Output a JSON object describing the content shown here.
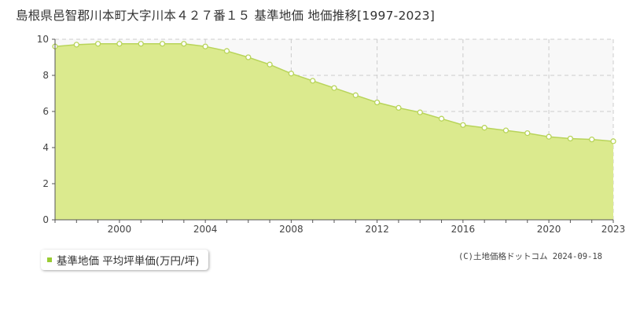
{
  "header": {
    "title": "島根県邑智郡川本町大字川本４２７番１５ 基準地価 地価推移[1997-2023]"
  },
  "legend": {
    "label": "基準地価 平均坪単価(万円/坪)"
  },
  "credit": {
    "text": "(C)土地価格ドットコム 2024-09-18"
  },
  "colors": {
    "fill": "#dbea8e",
    "line": "#b8d45a",
    "marker": "#99cc33",
    "grid": "#cccccc",
    "plot_bg": "#f8f8f8"
  },
  "chart_data": {
    "type": "area",
    "title": "島根県邑智郡川本町大字川本４２７番１５ 基準地価 地価推移[1997-2023]",
    "xlabel": "",
    "ylabel": "",
    "x": [
      1997,
      1998,
      1999,
      2000,
      2001,
      2002,
      2003,
      2004,
      2005,
      2006,
      2007,
      2008,
      2009,
      2010,
      2011,
      2012,
      2013,
      2014,
      2015,
      2016,
      2017,
      2018,
      2019,
      2020,
      2021,
      2022,
      2023
    ],
    "series": [
      {
        "name": "基準地価 平均坪単価(万円/坪)",
        "values": [
          9.6,
          9.7,
          9.75,
          9.75,
          9.75,
          9.75,
          9.75,
          9.6,
          9.35,
          9.0,
          8.6,
          8.1,
          7.7,
          7.3,
          6.9,
          6.5,
          6.2,
          5.95,
          5.6,
          5.25,
          5.1,
          4.95,
          4.8,
          4.6,
          4.5,
          4.45,
          4.35
        ]
      }
    ],
    "xlim": [
      1997,
      2023
    ],
    "ylim": [
      0,
      10
    ],
    "x_ticks": [
      "2000",
      "2004",
      "2008",
      "2012",
      "2016",
      "2020",
      "2023"
    ],
    "y_ticks": [
      "0",
      "2",
      "4",
      "6",
      "8",
      "10"
    ],
    "grid": true,
    "legend_position": "bottom-left"
  }
}
